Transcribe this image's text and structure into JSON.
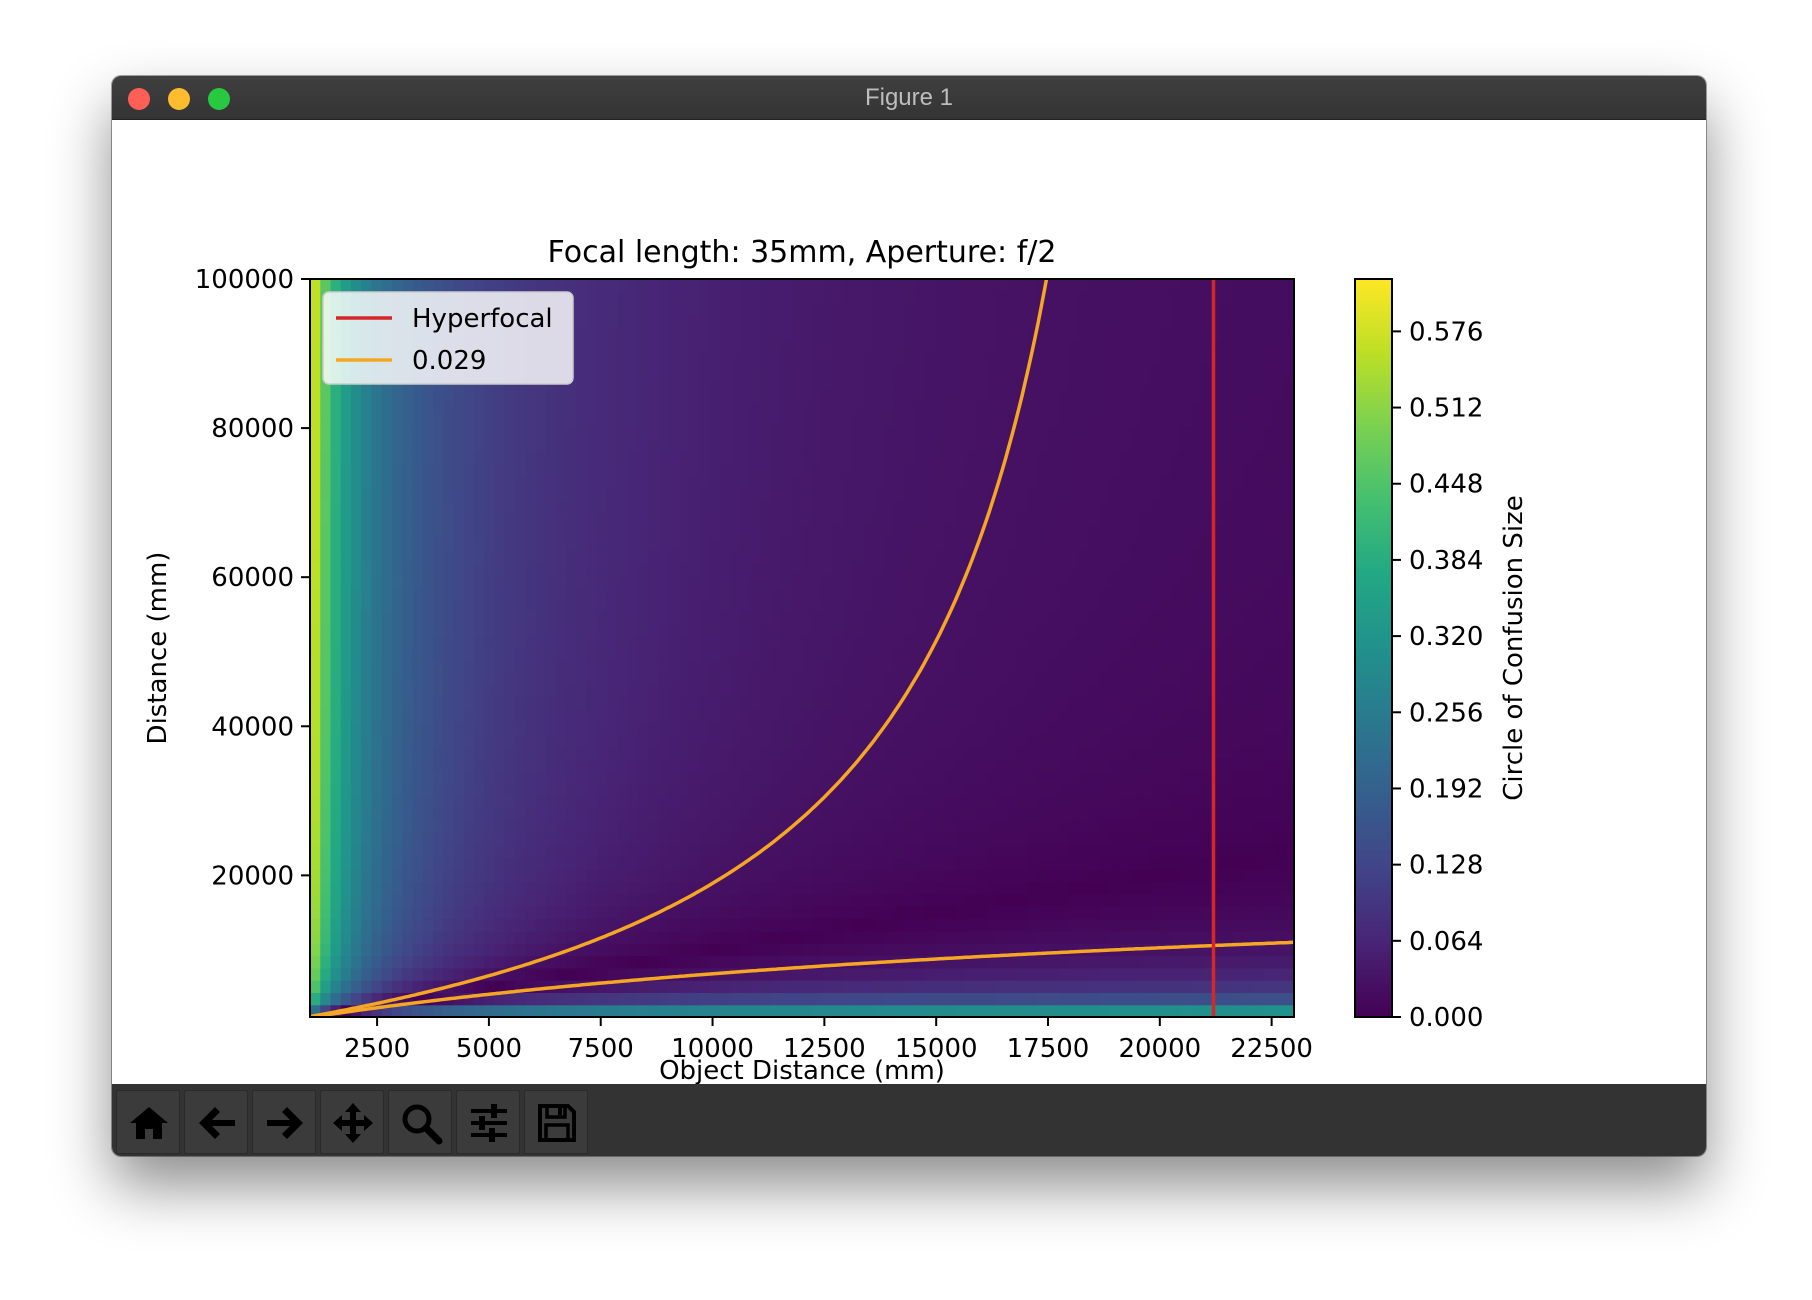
{
  "window": {
    "title": "Figure 1"
  },
  "toolbar": {
    "buttons": [
      {
        "name": "home-icon"
      },
      {
        "name": "back-arrow-icon"
      },
      {
        "name": "forward-arrow-icon"
      },
      {
        "name": "pan-icon"
      },
      {
        "name": "zoom-icon"
      },
      {
        "name": "subplots-config-icon"
      },
      {
        "name": "save-icon"
      }
    ]
  },
  "chart_data": {
    "type": "heatmap",
    "title": "Focal length: 35mm, Aperture: f/2",
    "xlabel": "Object Distance (mm)",
    "ylabel": "Distance (mm)",
    "xlim": [
      1000,
      23000
    ],
    "ylim": [
      1000,
      100000
    ],
    "x_ticks": [
      2500,
      5000,
      7500,
      10000,
      12500,
      15000,
      17500,
      20000,
      22500
    ],
    "y_ticks": [
      20000,
      40000,
      60000,
      80000,
      100000
    ],
    "colormap": "viridis",
    "colorbar": {
      "label": "Circle of Confusion Size",
      "range": [
        0.0,
        0.62
      ],
      "ticks": [
        "0.000",
        "0.064",
        "0.128",
        "0.192",
        "0.256",
        "0.320",
        "0.384",
        "0.448",
        "0.512",
        "0.576"
      ]
    },
    "focal_length_mm": 35,
    "f_number": 2,
    "hyperfocal_x": 21200,
    "legend": {
      "placement": "upper-left",
      "entries": [
        {
          "label": "Hyperfocal",
          "color": "#d62728"
        },
        {
          "label": "0.029",
          "color": "#f5a623"
        }
      ]
    },
    "contour_level": 0.029
  }
}
